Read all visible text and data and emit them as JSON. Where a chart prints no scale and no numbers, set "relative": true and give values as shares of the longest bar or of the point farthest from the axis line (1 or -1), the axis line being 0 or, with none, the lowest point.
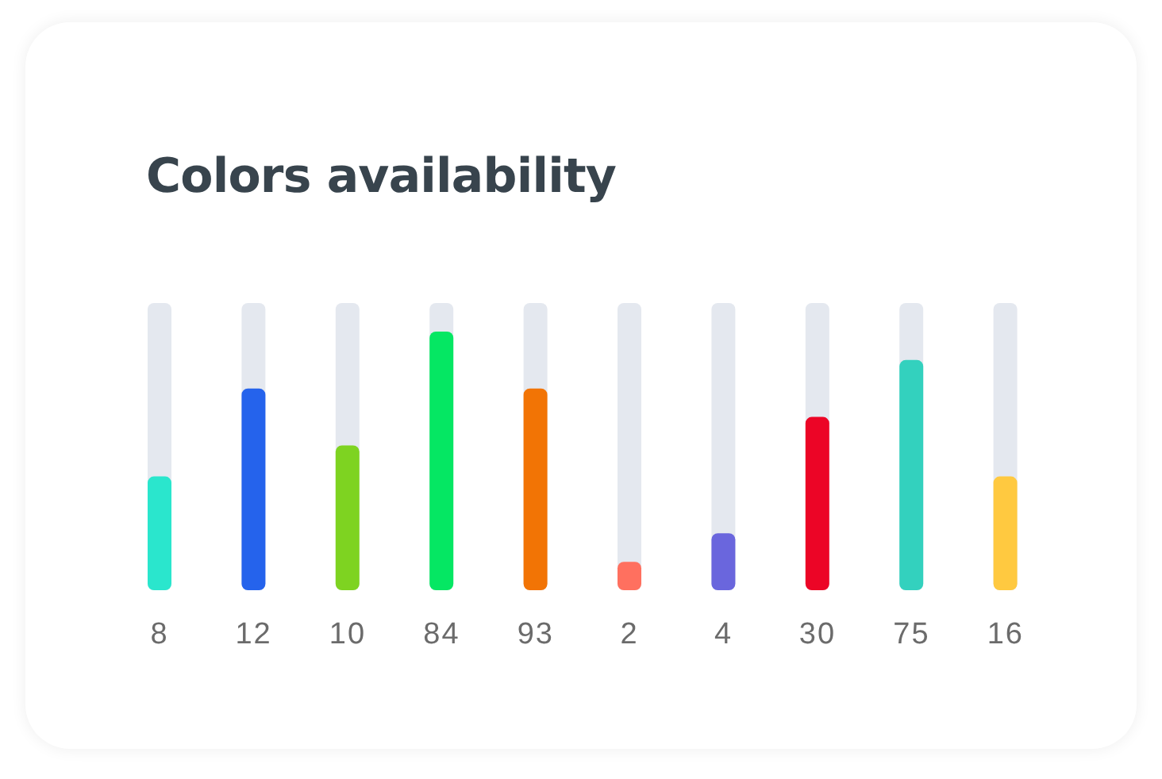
{
  "chart_data": {
    "type": "bar",
    "title": "Colors availability",
    "categories": [
      "8",
      "12",
      "10",
      "84",
      "93",
      "2",
      "4",
      "30",
      "75",
      "16"
    ],
    "values": [
      0.44,
      0.78,
      0.56,
      1,
      0.78,
      0.11,
      0.22,
      0.67,
      0.89,
      0.44
    ],
    "colors": [
      "#2ae6cd",
      "#2563ec",
      "#7ed321",
      "#05e763",
      "#f27405",
      "#ff705f",
      "#6a66dd",
      "#ec0526",
      "#33d1be",
      "#ffc940"
    ],
    "relative": true
  }
}
